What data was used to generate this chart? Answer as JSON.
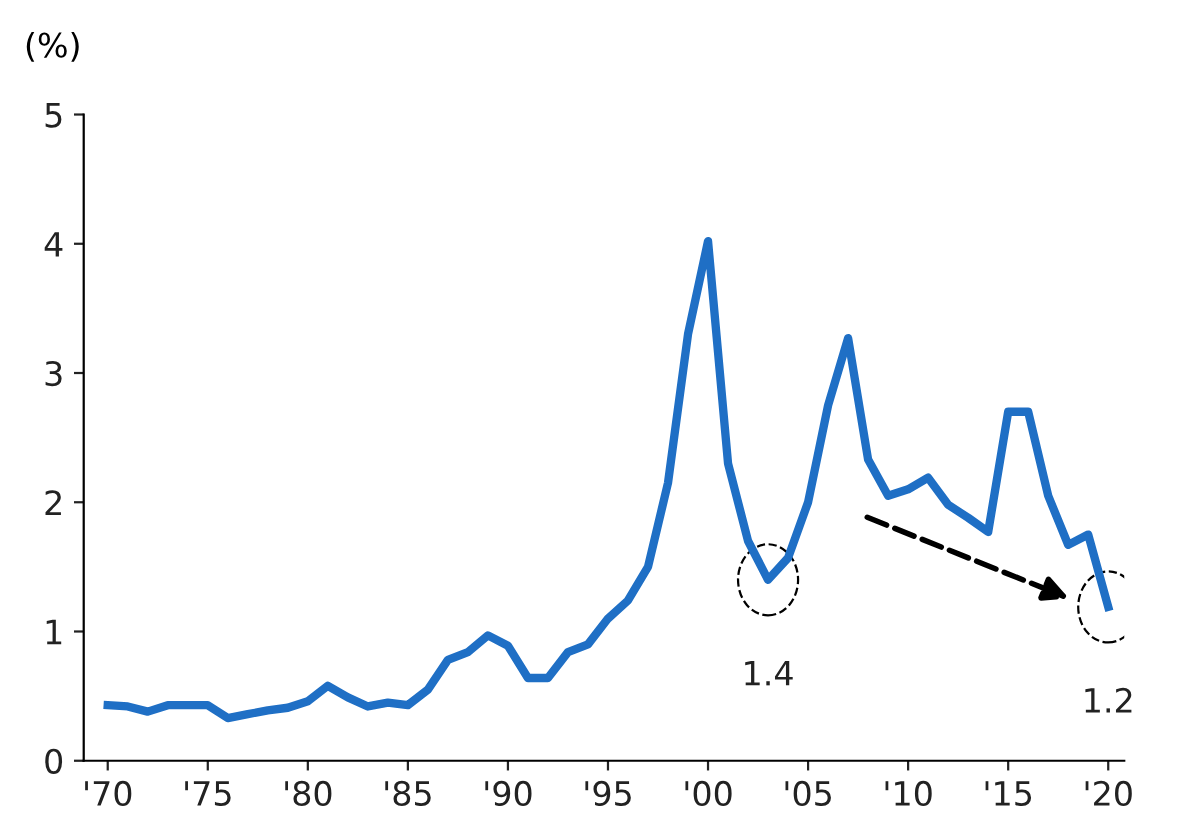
{
  "chart_data": {
    "type": "line",
    "ylabel": "(%)",
    "x": [
      1970,
      1971,
      1972,
      1973,
      1974,
      1975,
      1976,
      1977,
      1978,
      1979,
      1980,
      1981,
      1982,
      1983,
      1984,
      1985,
      1986,
      1987,
      1988,
      1989,
      1990,
      1991,
      1992,
      1993,
      1994,
      1995,
      1996,
      1997,
      1998,
      1999,
      2000,
      2001,
      2002,
      2003,
      2004,
      2005,
      2006,
      2007,
      2008,
      2009,
      2010,
      2011,
      2012,
      2013,
      2014,
      2015,
      2016,
      2017,
      2018,
      2019,
      2020
    ],
    "series": [
      {
        "color": "#1f6fc5",
        "values": [
          0.43,
          0.42,
          0.38,
          0.43,
          0.43,
          0.43,
          0.33,
          0.36,
          0.39,
          0.41,
          0.46,
          0.58,
          0.49,
          0.42,
          0.45,
          0.43,
          0.55,
          0.78,
          0.84,
          0.97,
          0.89,
          0.64,
          0.64,
          0.84,
          0.9,
          1.1,
          1.24,
          1.5,
          2.15,
          3.3,
          4.02,
          2.3,
          1.7,
          1.4,
          1.57,
          2.0,
          2.75,
          3.27,
          2.33,
          2.05,
          2.1,
          2.19,
          1.98,
          1.88,
          1.77,
          2.7,
          2.7,
          2.05,
          1.67,
          1.75,
          1.19
        ]
      }
    ],
    "xlim": [
      1968.8,
      2020.8
    ],
    "xticks": [
      {
        "value": 1970,
        "label": "'70"
      },
      {
        "value": 1975,
        "label": "'75"
      },
      {
        "value": 1980,
        "label": "'80"
      },
      {
        "value": 1985,
        "label": "'85"
      },
      {
        "value": 1990,
        "label": "'90"
      },
      {
        "value": 1995,
        "label": "'95"
      },
      {
        "value": 2000,
        "label": "'00"
      },
      {
        "value": 2005,
        "label": "'05"
      },
      {
        "value": 2010,
        "label": "'10"
      },
      {
        "value": 2015,
        "label": "'15"
      },
      {
        "value": 2020,
        "label": "'20"
      }
    ],
    "ylim": [
      0,
      5
    ],
    "yticks": [
      0,
      1,
      2,
      3,
      4,
      5
    ],
    "grid": false,
    "marker": "none",
    "line_style": "solid",
    "annotations": [
      {
        "text": "1.4",
        "x": 2003,
        "y": 1.4
      },
      {
        "text": "1.2",
        "x": 2020,
        "y": 1.19
      }
    ]
  }
}
